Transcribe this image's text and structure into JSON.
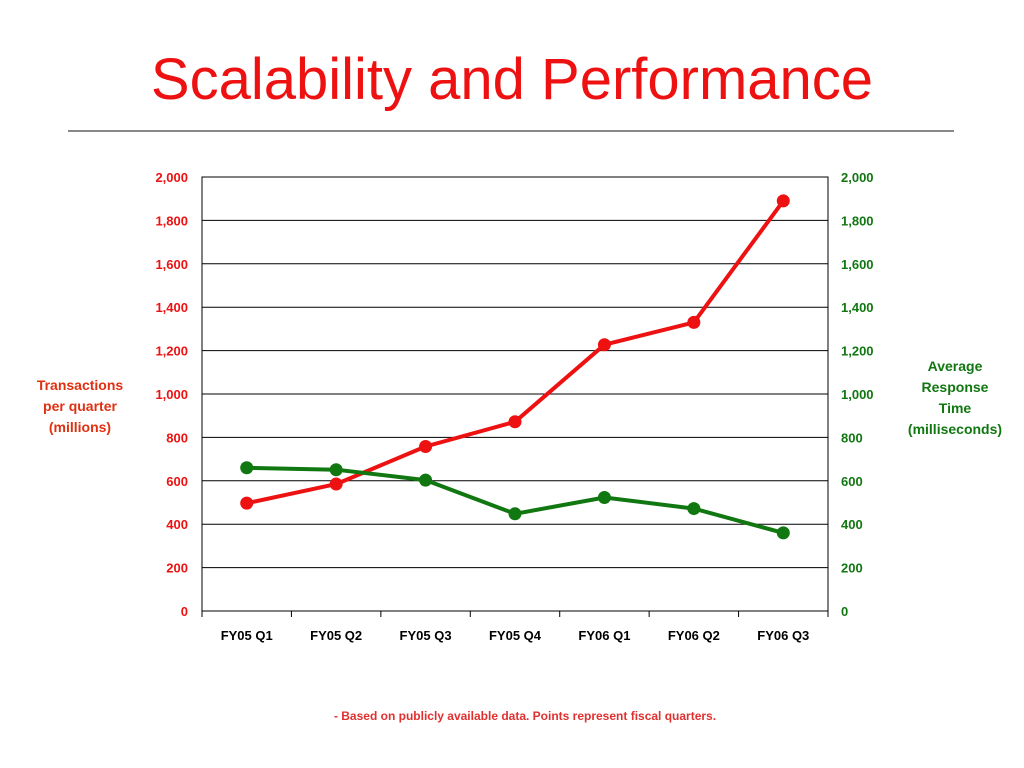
{
  "slide": {
    "title": "Scalability and Performance",
    "footnote": "- Based on publicly available data.  Points represent fiscal quarters."
  },
  "colors": {
    "title": "#ee1111",
    "transactions": "#ee1111",
    "response": "#117711",
    "footnote": "#e03030",
    "left_axis_title": "#e03010",
    "right_axis_title": "#117711"
  },
  "chart_data": {
    "type": "line",
    "categories": [
      "FY05 Q1",
      "FY05 Q2",
      "FY05 Q3",
      "FY05 Q4",
      "FY06 Q1",
      "FY06 Q2",
      "FY06 Q3"
    ],
    "series": [
      {
        "axis": "left",
        "values": [
          497,
          585,
          758,
          872,
          1227,
          1330,
          1890
        ]
      },
      {
        "axis": "right",
        "values": [
          660,
          651,
          603,
          448,
          523,
          472,
          360
        ]
      }
    ],
    "left_axis": {
      "title": "Transactions\nper quarter\n(millions)",
      "range": [
        0,
        2000
      ],
      "ticks": [
        "0",
        "200",
        "400",
        "600",
        "800",
        "1,000",
        "1,200",
        "1,400",
        "1,600",
        "1,800",
        "2,000"
      ]
    },
    "right_axis": {
      "title": "Average\nResponse\nTime\n(milliseconds)",
      "range": [
        0,
        2000
      ],
      "ticks": [
        "0",
        "200",
        "400",
        "600",
        "800",
        "1,000",
        "1,200",
        "1,400",
        "1,600",
        "1,800",
        "2,000"
      ]
    },
    "grid": "horizontal",
    "legend": "none"
  }
}
